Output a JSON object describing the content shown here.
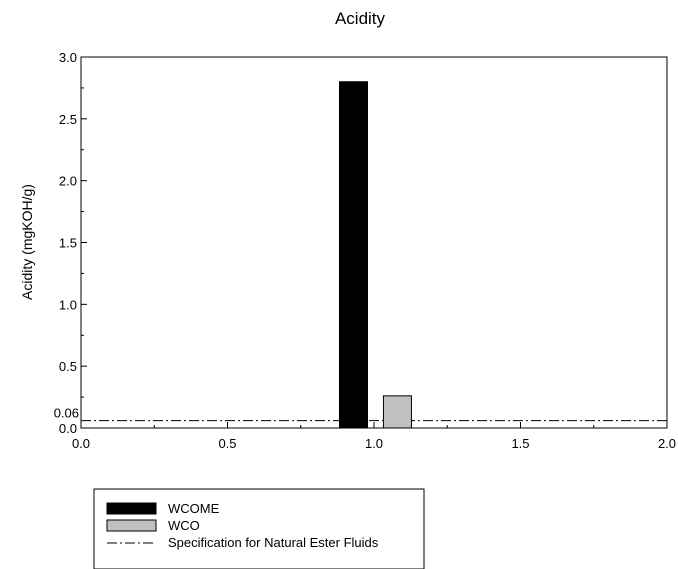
{
  "chart_data": {
    "type": "bar",
    "title": "Acidity",
    "xlabel": "",
    "ylabel": "Acidity (mgKOH/g)",
    "xlim": [
      0.0,
      2.0
    ],
    "ylim": [
      0.0,
      3.0
    ],
    "x_ticks": [
      "0.0",
      "0.5",
      "1.0",
      "1.5",
      "2.0"
    ],
    "y_ticks": [
      "0.0",
      "0.5",
      "1.0",
      "1.5",
      "2.0",
      "2.5",
      "3.0"
    ],
    "grid": false,
    "series": [
      {
        "name": "WCOME",
        "x": 0.93,
        "value": 2.8,
        "color": "#000000"
      },
      {
        "name": "WCO",
        "x": 1.08,
        "value": 0.26,
        "color": "#c0c0c0"
      }
    ],
    "reference_line": {
      "name": "Specification for Natural Ester Fluids",
      "value": 0.06,
      "label": "0.06",
      "style": "dash-dot"
    },
    "legend_position": "bottom-left"
  }
}
